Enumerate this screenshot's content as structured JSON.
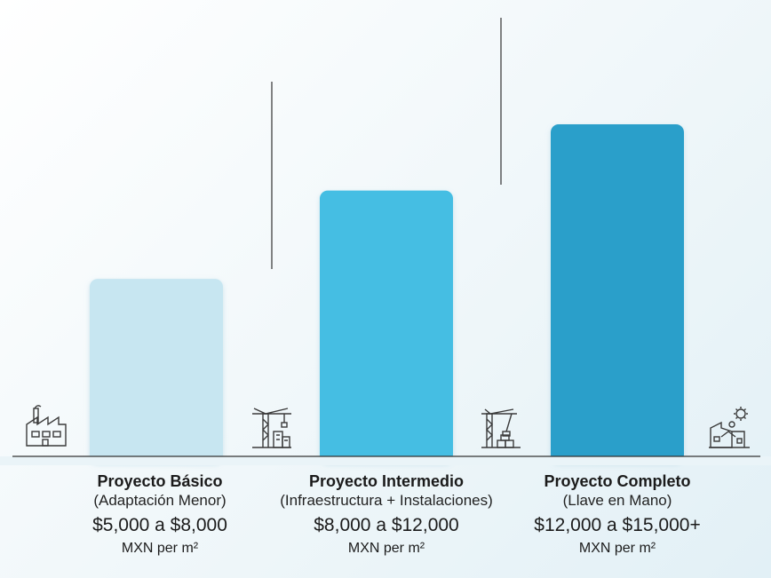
{
  "chart_data": {
    "type": "bar",
    "categories": [
      "Proyecto Básico",
      "Proyecto Intermedio",
      "Proyecto Completo"
    ],
    "subtitles": [
      "(Adaptación Menor)",
      "(Infraestructura + Instalaciones)",
      "(Llave en Mano)"
    ],
    "ranges": [
      "$5,000 a $8,000",
      "$8,000 a $12,000",
      "$12,000 a $15,000+"
    ],
    "units": [
      "MXN per m²",
      "MXN per m²",
      "MXN per m²"
    ],
    "values": [
      8000,
      12000,
      15000
    ],
    "ylim": [
      0,
      15000
    ],
    "colors": [
      "#c7e6f1",
      "#44bee3",
      "#2a9fca"
    ],
    "icons": [
      "factory-icon",
      "construction-crane-icon",
      "crane-bricks-icon",
      "smart-factory-gear-icon"
    ]
  }
}
